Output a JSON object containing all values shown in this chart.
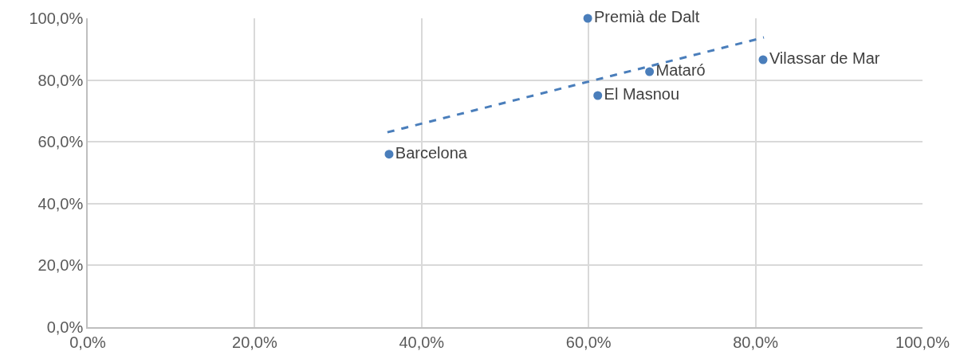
{
  "chart_data": {
    "type": "scatter",
    "marker": "circle",
    "grid": true,
    "xlim": [
      0,
      100
    ],
    "ylim": [
      0,
      100
    ],
    "xticks": [
      {
        "value": 0,
        "label": "0,0%"
      },
      {
        "value": 20,
        "label": "20,0%"
      },
      {
        "value": 40,
        "label": "40,0%"
      },
      {
        "value": 60,
        "label": "60,0%"
      },
      {
        "value": 80,
        "label": "80,0%"
      },
      {
        "value": 100,
        "label": "100,0%"
      }
    ],
    "yticks": [
      {
        "value": 0,
        "label": "0,0%"
      },
      {
        "value": 20,
        "label": "20,0%"
      },
      {
        "value": 40,
        "label": "40,0%"
      },
      {
        "value": 60,
        "label": "60,0%"
      },
      {
        "value": 80,
        "label": "80,0%"
      },
      {
        "value": 100,
        "label": "100,0%"
      }
    ],
    "series": [
      {
        "name": "Barcelona",
        "color": "#4a7ebb",
        "x": [
          36.1
        ],
        "values": [
          56
        ]
      },
      {
        "name": "Premià de Dalt",
        "color": "#4a7ebb",
        "x": [
          59.9
        ],
        "values": [
          100
        ]
      },
      {
        "name": "Mataró",
        "color": "#4a7ebb",
        "x": [
          67.3
        ],
        "values": [
          82.7
        ]
      },
      {
        "name": "Vilassar de Mar",
        "color": "#4a7ebb",
        "x": [
          80.9
        ],
        "values": [
          86.6
        ]
      },
      {
        "name": "El Masnou",
        "color": "#4a7ebb",
        "x": [
          61.1
        ],
        "values": [
          75
        ]
      },
      {
        "type": "line",
        "marker": "none",
        "line_style": "dashed",
        "color": "#4a7ebb",
        "x": [
          35.9,
          81
        ],
        "values": [
          63.1,
          93.8
        ]
      }
    ]
  }
}
